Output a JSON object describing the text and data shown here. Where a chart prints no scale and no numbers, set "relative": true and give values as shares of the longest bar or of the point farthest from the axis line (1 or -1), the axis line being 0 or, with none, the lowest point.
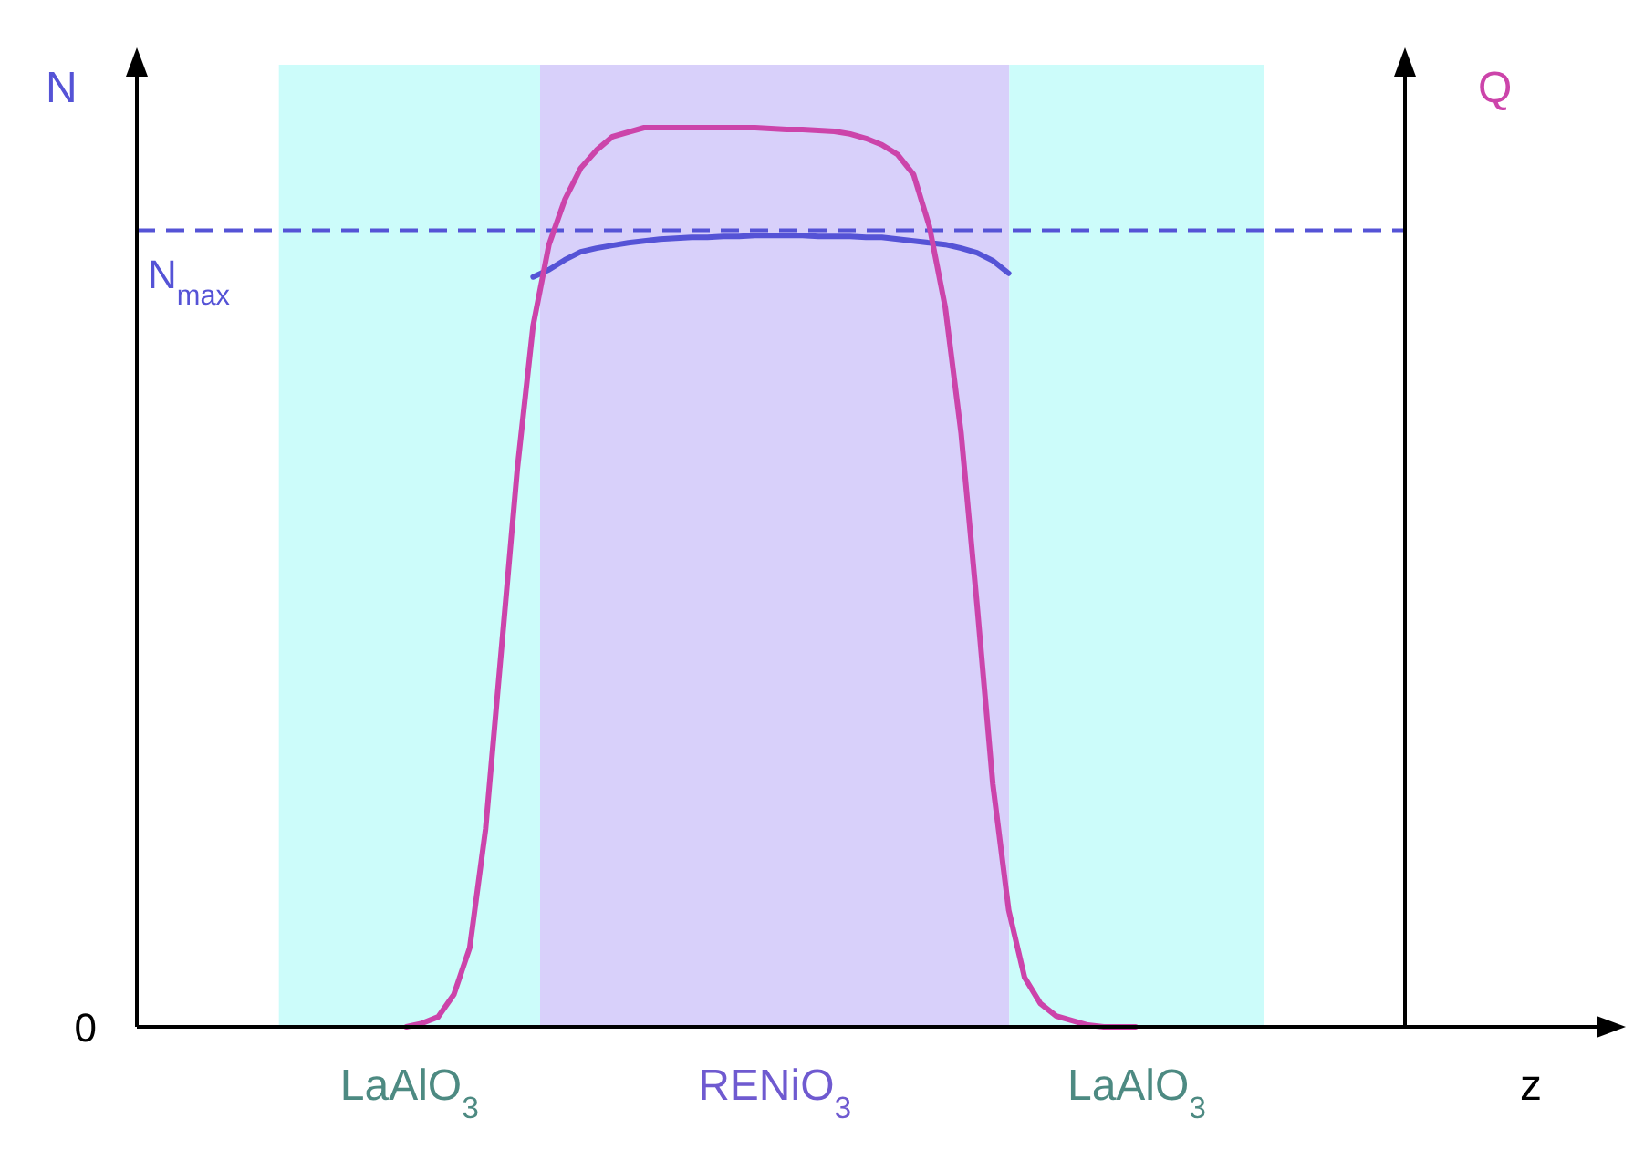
{
  "chart_data": {
    "type": "line",
    "relative": true,
    "xlabel": "z",
    "ylabel": "N",
    "y2label": "Q",
    "categories": [
      null,
      null,
      null,
      null,
      null,
      null,
      null,
      null,
      null,
      null,
      null,
      null,
      null,
      null,
      null,
      null,
      null,
      null,
      null,
      null,
      null,
      null,
      null,
      null,
      null,
      null,
      null,
      null,
      null,
      null,
      null,
      null,
      null,
      null,
      null,
      null,
      null,
      null,
      null,
      null,
      null,
      null,
      null,
      null,
      null,
      null,
      null,
      null,
      null,
      null,
      null,
      null,
      null,
      null,
      null,
      null,
      null,
      null,
      null,
      null,
      null,
      null,
      null,
      null,
      null,
      null,
      null,
      null,
      null,
      null,
      null,
      null,
      null,
      null,
      null,
      null,
      null,
      null,
      null,
      null,
      null
    ],
    "series": [
      {
        "color": "#5553d6",
        "values": [
          null,
          null,
          null,
          null,
          null,
          null,
          null,
          null,
          null,
          null,
          null,
          null,
          null,
          null,
          null,
          null,
          null,
          null,
          null,
          null,
          null,
          null,
          null,
          null,
          null,
          0.834,
          0.842,
          0.853,
          0.862,
          0.866,
          0.869,
          0.872,
          0.874,
          0.876,
          0.877,
          0.878,
          0.878,
          0.879,
          0.879,
          0.88,
          0.88,
          0.88,
          0.88,
          0.879,
          0.879,
          0.879,
          0.878,
          0.878,
          0.876,
          0.874,
          0.872,
          0.87,
          0.866,
          0.861,
          0.852,
          0.838,
          null,
          null,
          null,
          null,
          null,
          null,
          null,
          null,
          null,
          null,
          null,
          null,
          null,
          null,
          null,
          null,
          null,
          null,
          null,
          null,
          null,
          null,
          null,
          null,
          null
        ]
      },
      {
        "color": "#cc44aa",
        "values": [
          null,
          null,
          null,
          null,
          null,
          null,
          null,
          null,
          null,
          null,
          null,
          null,
          null,
          null,
          null,
          null,
          null,
          0,
          0.004,
          0.011,
          0.036,
          0.088,
          0.22,
          0.42,
          0.62,
          0.78,
          0.87,
          0.92,
          0.955,
          0.975,
          0.99,
          0.995,
          1,
          1,
          1,
          1,
          1,
          1,
          1,
          1,
          0.999,
          0.998,
          0.998,
          0.997,
          0.996,
          0.993,
          0.988,
          0.981,
          0.97,
          0.948,
          0.89,
          0.8,
          0.66,
          0.47,
          0.27,
          0.13,
          0.055,
          0.026,
          0.012,
          0.007,
          0.002,
          0,
          0,
          0,
          null,
          null,
          null,
          null,
          null,
          null,
          null,
          null,
          null,
          null,
          null,
          null,
          null,
          null,
          null,
          null,
          null
        ]
      }
    ],
    "ref_lines": [
      {
        "axis": "y",
        "value": 0.886,
        "label": "N$_{max}$",
        "color": "#5553d6",
        "line_style": "dashed"
      }
    ],
    "annotations": [
      "0",
      "LaAlO$_{3}$",
      "RENiO$_{3}$",
      "LaAlO$_{3}$"
    ]
  }
}
